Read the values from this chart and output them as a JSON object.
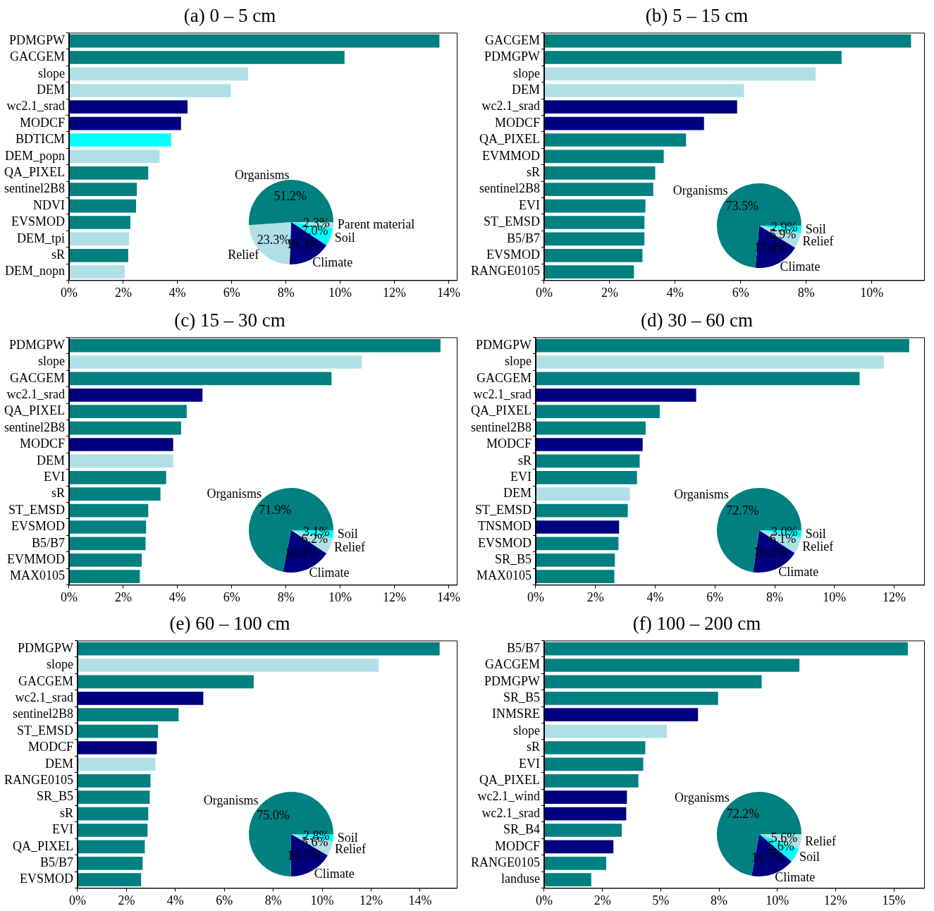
{
  "chart_data": [
    {
      "type": "bar",
      "title": "(a) 0 – 5 cm",
      "orientation": "horizontal",
      "categories": [
        "PDMGPW",
        "GACGEM",
        "slope",
        "DEM",
        "wc2.1_srad",
        "MODCF",
        "BDTICM",
        "DEM_popn",
        "QA_PIXEL",
        "sentinel2B8",
        "NDVI",
        "EVSMOD",
        "DEM_tpi",
        "sR",
        "DEM_nopn"
      ],
      "values": [
        13.66,
        10.16,
        6.6,
        5.97,
        4.37,
        4.13,
        3.76,
        3.34,
        2.92,
        2.5,
        2.47,
        2.26,
        2.21,
        2.18,
        2.05
      ],
      "colors": [
        "#008080",
        "#008080",
        "#b0e0e6",
        "#b0e0e6",
        "#000080",
        "#000080",
        "#00ffff",
        "#b0e0e6",
        "#008080",
        "#008080",
        "#008080",
        "#008080",
        "#b0e0e6",
        "#008080",
        "#b0e0e6"
      ],
      "xlim": [
        0,
        14.3
      ],
      "xticks": [
        {
          "value": 0,
          "label": "0%"
        },
        {
          "value": 2,
          "label": "2%"
        },
        {
          "value": 4,
          "label": "4%"
        },
        {
          "value": 6,
          "label": "6%"
        },
        {
          "value": 8,
          "label": "8%"
        },
        {
          "value": 10,
          "label": "10%"
        },
        {
          "value": 12,
          "label": "12%"
        },
        {
          "value": 14,
          "label": "14%"
        }
      ],
      "legend": false
    },
    {
      "type": "pie",
      "categories": [
        "Parent material",
        "Soil",
        "Climate",
        "Relief",
        "Organisms"
      ],
      "values": [
        2.3,
        7.0,
        16.3,
        23.3,
        51.2
      ],
      "value_labels": [
        "2.3%",
        "7.0%",
        "16.3%",
        "23.3%",
        "51.2%"
      ],
      "colors": [
        "#b0e0e6",
        "#00ffff",
        "#000080",
        "#b0e0e6",
        "#008080"
      ],
      "legend": false
    },
    {
      "type": "bar",
      "title": "(b) 5 – 15 cm",
      "orientation": "horizontal",
      "categories": [
        "GACGEM",
        "PDMGPW",
        "slope",
        "DEM",
        "wc2.1_srad",
        "MODCF",
        "QA_PIXEL",
        "EVMMOD",
        "sR",
        "sentinel2B8",
        "EVI",
        "ST_EMSD",
        "B5/B7",
        "EVSMOD",
        "RANGE0105"
      ],
      "values": [
        11.2,
        9.08,
        8.29,
        6.1,
        5.89,
        4.88,
        4.33,
        3.65,
        3.39,
        3.33,
        3.09,
        3.06,
        3.06,
        3.0,
        2.74
      ],
      "colors": [
        "#008080",
        "#008080",
        "#b0e0e6",
        "#b0e0e6",
        "#000080",
        "#000080",
        "#008080",
        "#008080",
        "#008080",
        "#008080",
        "#008080",
        "#008080",
        "#008080",
        "#008080",
        "#008080"
      ],
      "xlim": [
        0,
        11.6
      ],
      "xticks": [
        {
          "value": 0,
          "label": "0%"
        },
        {
          "value": 2,
          "label": "2%"
        },
        {
          "value": 4,
          "label": "4%"
        },
        {
          "value": 6,
          "label": "6%"
        },
        {
          "value": 8,
          "label": "8%"
        },
        {
          "value": 10,
          "label": "10%"
        }
      ],
      "legend": false
    },
    {
      "type": "pie",
      "categories": [
        "Soil",
        "Relief",
        "Climate",
        "Organisms"
      ],
      "values": [
        2.9,
        5.9,
        17.6,
        73.5
      ],
      "value_labels": [
        "2.9%",
        "5.9%",
        "17.6%",
        "73.5%"
      ],
      "colors": [
        "#00ffff",
        "#b0e0e6",
        "#000080",
        "#008080"
      ],
      "legend": false
    },
    {
      "type": "bar",
      "title": "(c) 15 – 30 cm",
      "orientation": "horizontal",
      "categories": [
        "PDMGPW",
        "slope",
        "GACGEM",
        "wc2.1_srad",
        "QA_PIXEL",
        "sentinel2B8",
        "MODCF",
        "DEM",
        "EVI",
        "sR",
        "ST_EMSD",
        "EVSMOD",
        "B5/B7",
        "EVMMOD",
        "MAX0105"
      ],
      "values": [
        13.7,
        10.8,
        9.68,
        4.92,
        4.34,
        4.13,
        3.84,
        3.84,
        3.58,
        3.37,
        2.92,
        2.84,
        2.82,
        2.68,
        2.61
      ],
      "colors": [
        "#008080",
        "#b0e0e6",
        "#008080",
        "#000080",
        "#008080",
        "#008080",
        "#000080",
        "#b0e0e6",
        "#008080",
        "#008080",
        "#008080",
        "#008080",
        "#008080",
        "#008080",
        "#008080"
      ],
      "xlim": [
        0,
        14.3
      ],
      "xticks": [
        {
          "value": 0,
          "label": "0%"
        },
        {
          "value": 2,
          "label": "2%"
        },
        {
          "value": 4,
          "label": "4%"
        },
        {
          "value": 6,
          "label": "6%"
        },
        {
          "value": 8,
          "label": "8%"
        },
        {
          "value": 10,
          "label": "10%"
        },
        {
          "value": 12,
          "label": "12%"
        },
        {
          "value": 14,
          "label": "14%"
        }
      ],
      "legend": false
    },
    {
      "type": "pie",
      "categories": [
        "Soil",
        "Relief",
        "Climate",
        "Organisms"
      ],
      "values": [
        3.1,
        6.2,
        18.8,
        71.9
      ],
      "value_labels": [
        "3.1%",
        "6.2%",
        "18.8%",
        "71.9%"
      ],
      "colors": [
        "#00ffff",
        "#b0e0e6",
        "#000080",
        "#008080"
      ],
      "legend": false
    },
    {
      "type": "bar",
      "title": "(d) 30 – 60 cm",
      "orientation": "horizontal",
      "categories": [
        "PDMGPW",
        "slope",
        "GACGEM",
        "wc2.1_srad",
        "QA_PIXEL",
        "sentinel2B8",
        "MODCF",
        "sR",
        "EVI",
        "DEM",
        "ST_EMSD",
        "TNSMOD",
        "EVSMOD",
        "SR_B5",
        "MAX0105"
      ],
      "values": [
        12.5,
        11.65,
        10.84,
        5.37,
        4.15,
        3.68,
        3.58,
        3.48,
        3.39,
        3.15,
        3.08,
        2.79,
        2.77,
        2.65,
        2.63
      ],
      "colors": [
        "#008080",
        "#b0e0e6",
        "#008080",
        "#000080",
        "#008080",
        "#008080",
        "#000080",
        "#008080",
        "#008080",
        "#b0e0e6",
        "#008080",
        "#000080",
        "#008080",
        "#008080",
        "#008080"
      ],
      "xlim": [
        0,
        13.0
      ],
      "xticks": [
        {
          "value": 0,
          "label": "0%"
        },
        {
          "value": 2,
          "label": "2%"
        },
        {
          "value": 4,
          "label": "4%"
        },
        {
          "value": 6,
          "label": "6%"
        },
        {
          "value": 8,
          "label": "8%"
        },
        {
          "value": 10,
          "label": "10%"
        },
        {
          "value": 12,
          "label": "12%"
        }
      ],
      "legend": false
    },
    {
      "type": "pie",
      "categories": [
        "Soil",
        "Relief",
        "Climate",
        "Organisms"
      ],
      "values": [
        3.0,
        6.1,
        18.2,
        72.7
      ],
      "value_labels": [
        "3.0%",
        "6.1%",
        "18.2%",
        "72.7%"
      ],
      "colors": [
        "#00ffff",
        "#b0e0e6",
        "#000080",
        "#008080"
      ],
      "legend": false
    },
    {
      "type": "bar",
      "title": "(e) 60 – 100 cm",
      "orientation": "horizontal",
      "categories": [
        "PDMGPW",
        "slope",
        "GACGEM",
        "wc2.1_srad",
        "sentinel2B8",
        "ST_EMSD",
        "MODCF",
        "DEM",
        "RANGE0105",
        "SR_B5",
        "sR",
        "EVI",
        "QA_PIXEL",
        "B5/B7",
        "EVSMOD"
      ],
      "values": [
        14.8,
        12.3,
        7.2,
        5.14,
        4.13,
        3.29,
        3.24,
        3.18,
        2.98,
        2.95,
        2.89,
        2.86,
        2.75,
        2.66,
        2.6
      ],
      "colors": [
        "#008080",
        "#b0e0e6",
        "#008080",
        "#000080",
        "#008080",
        "#008080",
        "#000080",
        "#b0e0e6",
        "#008080",
        "#008080",
        "#008080",
        "#008080",
        "#008080",
        "#008080",
        "#008080"
      ],
      "xlim": [
        0,
        15.5
      ],
      "xticks": [
        {
          "value": 0,
          "label": "0%"
        },
        {
          "value": 2,
          "label": "2%"
        },
        {
          "value": 4,
          "label": "4%"
        },
        {
          "value": 6,
          "label": "6%"
        },
        {
          "value": 8,
          "label": "8%"
        },
        {
          "value": 10,
          "label": "10%"
        },
        {
          "value": 12,
          "label": "12%"
        },
        {
          "value": 14,
          "label": "14%"
        }
      ],
      "legend": false
    },
    {
      "type": "pie",
      "categories": [
        "Soil",
        "Relief",
        "Climate",
        "Organisms"
      ],
      "values": [
        2.8,
        5.6,
        16.7,
        75.0
      ],
      "value_labels": [
        "2.8%",
        "5.6%",
        "16.7%",
        "75.0%"
      ],
      "colors": [
        "#00ffff",
        "#b0e0e6",
        "#000080",
        "#008080"
      ],
      "legend": false
    },
    {
      "type": "bar",
      "title": "(f) 100 – 200 cm",
      "orientation": "horizontal",
      "categories": [
        "B5/B7",
        "GACGEM",
        "PDMGPW",
        "SR_B5",
        "INMSRE",
        "slope",
        "sR",
        "EVI",
        "QA_PIXEL",
        "wc2.1_wind",
        "wc2.1_srad",
        "SR_B4",
        "MODCF",
        "RANGE0105",
        "landuse"
      ],
      "values": [
        15.6,
        10.95,
        9.33,
        7.46,
        6.6,
        5.26,
        4.34,
        4.25,
        4.04,
        3.55,
        3.52,
        3.33,
        2.97,
        2.66,
        2.02
      ],
      "colors": [
        "#008080",
        "#008080",
        "#008080",
        "#008080",
        "#000080",
        "#b0e0e6",
        "#008080",
        "#008080",
        "#008080",
        "#000080",
        "#000080",
        "#008080",
        "#000080",
        "#008080",
        "#008080"
      ],
      "xlim": [
        0,
        16.3
      ],
      "xticks": [
        {
          "value": 0,
          "label": "0%"
        },
        {
          "value": 2.5,
          "label": "2%"
        },
        {
          "value": 5,
          "label": "5%"
        },
        {
          "value": 7.5,
          "label": "8%"
        },
        {
          "value": 10,
          "label": "10%"
        },
        {
          "value": 12.5,
          "label": "12%"
        },
        {
          "value": 15,
          "label": "15%"
        }
      ],
      "legend": false
    },
    {
      "type": "pie",
      "categories": [
        "Relief",
        "Soil",
        "Climate",
        "Organisms"
      ],
      "values": [
        5.6,
        5.6,
        16.7,
        72.2
      ],
      "value_labels": [
        "5.6%",
        "5.6%",
        "16.7%",
        "72.2%"
      ],
      "colors": [
        "#b0e0e6",
        "#00ffff",
        "#000080",
        "#008080"
      ],
      "legend": false
    }
  ]
}
